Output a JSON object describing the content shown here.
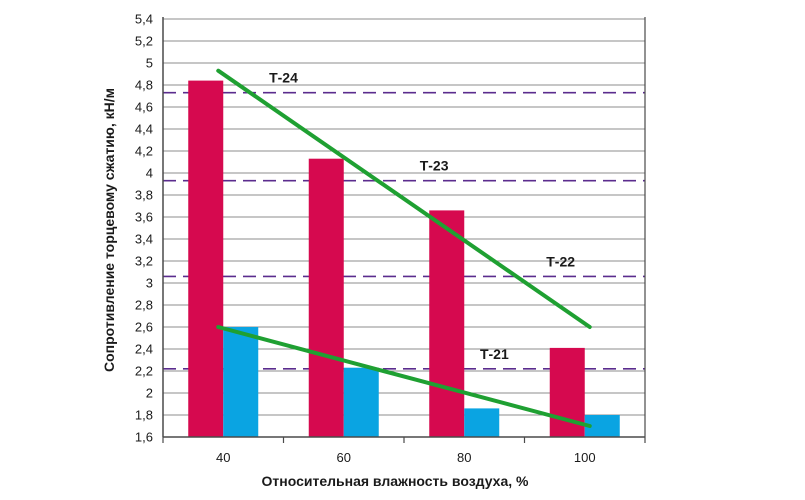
{
  "chart_data": {
    "type": "bar",
    "title": "",
    "xlabel": "Относительная влажность воздуха, %",
    "ylabel": "Сопротивление торцевому сжатию, кН/м",
    "categories": [
      "40",
      "60",
      "80",
      "100"
    ],
    "ylim": [
      1.6,
      5.4
    ],
    "yticks": [
      "1,6",
      "1,8",
      "2",
      "2,2",
      "2,4",
      "2,6",
      "2,8",
      "3",
      "3,2",
      "3,4",
      "3,6",
      "3,8",
      "4",
      "4,2",
      "4,4",
      "4,6",
      "4,8",
      "5",
      "5,2",
      "5,4"
    ],
    "grid": true,
    "series": [
      {
        "values": [
          4.84,
          4.13,
          3.66,
          2.41
        ],
        "color": "#d6094f"
      },
      {
        "values": [
          2.6,
          2.23,
          1.86,
          1.8
        ],
        "color": "#0aa4e2"
      }
    ],
    "trend_lines": [
      {
        "from": {
          "x": 40,
          "y": 4.93
        },
        "to": {
          "x": 100,
          "y": 2.6
        },
        "color": "#1fa032"
      },
      {
        "from": {
          "x": 40,
          "y": 2.6
        },
        "to": {
          "x": 100,
          "y": 1.7
        },
        "color": "#1fa032"
      }
    ],
    "reference_lines": [
      {
        "label": "Т-24",
        "value": 4.73,
        "label_x": 50
      },
      {
        "label": "Т-23",
        "value": 3.93,
        "label_x": 75
      },
      {
        "label": "Т-22",
        "value": 3.06,
        "label_x": 96
      },
      {
        "label": "Т-21",
        "value": 2.22,
        "label_x": 85
      }
    ],
    "reference_color": "#5b2c8e",
    "grid_color": "#8c8c8c",
    "axis_color": "#4a4a4a"
  }
}
